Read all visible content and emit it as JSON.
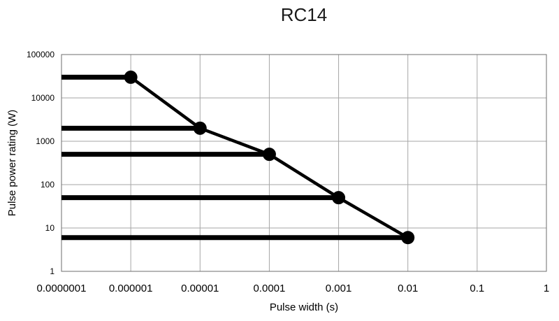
{
  "chart_data": {
    "type": "line",
    "title": "RC14",
    "xlabel": "Pulse width (s)",
    "ylabel": "Pulse power rating (W)",
    "x_scale": "log",
    "y_scale": "log",
    "xlim": [
      1e-07,
      1
    ],
    "ylim": [
      1,
      100000
    ],
    "grid": true,
    "x_ticks": [
      "0.0000001",
      "0.000001",
      "0.00001",
      "0.0001",
      "0.001",
      "0.01",
      "0.1",
      "1"
    ],
    "y_ticks": [
      "100000",
      "10000",
      "1000",
      "100",
      "10",
      "1"
    ],
    "series": [
      {
        "x": [
          1e-06,
          1e-05,
          0.0001,
          0.001,
          0.01
        ],
        "y": [
          30000,
          2000,
          500,
          50,
          6
        ]
      }
    ],
    "horizontal_lines": [
      {
        "x_end": 1e-06,
        "y": 30000
      },
      {
        "x_end": 1e-05,
        "y": 2000
      },
      {
        "x_end": 0.0001,
        "y": 500
      },
      {
        "x_end": 0.001,
        "y": 50
      },
      {
        "x_end": 0.01,
        "y": 6
      }
    ],
    "color": "#000000"
  }
}
